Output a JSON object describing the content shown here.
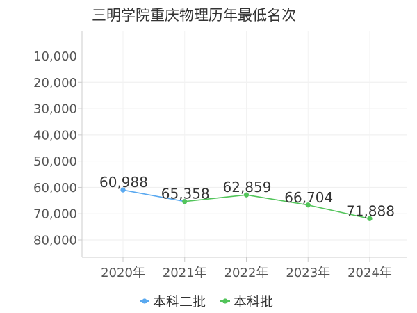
{
  "chart_data": {
    "type": "line",
    "title": "三明学院重庆物理历年最低名次",
    "categories": [
      "2020年",
      "2021年",
      "2022年",
      "2023年",
      "2024年"
    ],
    "y_ticks": [
      "10,000",
      "20,000",
      "30,000",
      "40,000",
      "50,000",
      "60,000",
      "70,000",
      "80,000"
    ],
    "y_tick_values": [
      10000,
      20000,
      30000,
      40000,
      50000,
      60000,
      70000,
      80000
    ],
    "ylim": [
      0,
      85000
    ],
    "y_reversed": true,
    "grid": true,
    "legend_position": "bottom",
    "series": [
      {
        "name": "本科二批",
        "color": "#5aa9f0",
        "values": [
          60988,
          65358,
          null,
          null,
          null
        ],
        "labels": [
          "60,988",
          "",
          "",
          "",
          ""
        ]
      },
      {
        "name": "本科批",
        "color": "#52c45a",
        "values": [
          null,
          65358,
          62859,
          66704,
          71888
        ],
        "labels": [
          "",
          "65,358",
          "62,859",
          "66,704",
          "71,888"
        ]
      }
    ]
  }
}
